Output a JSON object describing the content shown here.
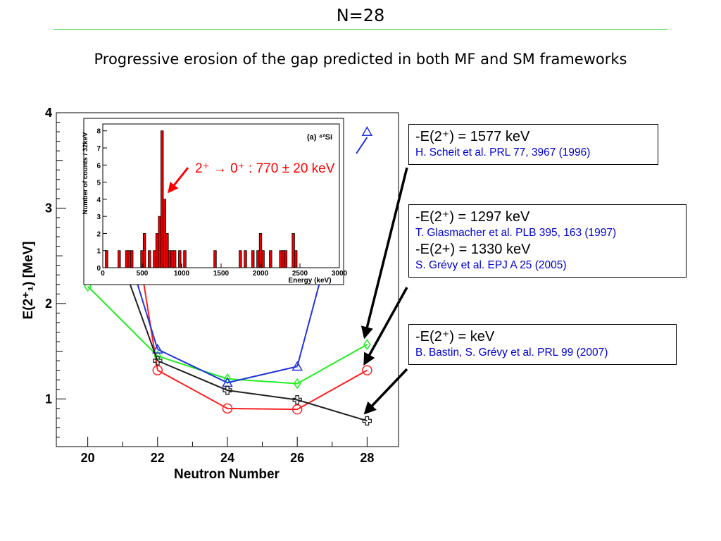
{
  "slide": {
    "title": "N=28",
    "subtitle": "Progressive erosion of the gap predicted in both MF and SM frameworks"
  },
  "references": [
    {
      "value": "-E(2⁺) = 1577 keV",
      "citation": "H. Scheit et al. PRL 77, 3967 (1996)"
    },
    {
      "value": "-E(2⁺) = 1297 keV",
      "citation": "T. Glasmacher et al. PLB 395, 163 (1997)",
      "value2": "-E(2+) = 1330 keV",
      "citation2": "S. Grévy et al. EPJ A 25 (2005)"
    },
    {
      "value": "-E(2⁺) =  keV",
      "citation": "B. Bastin, S. Grévy et al. PRL 99 (2007)"
    }
  ],
  "inset_annotation": "2⁺ → 0⁺ : 770 ± 20 keV",
  "colors": {
    "red": "#ff2020",
    "green": "#22ee22",
    "blue": "#2233dd",
    "black": "#222222",
    "citation": "#0000cc",
    "rule": "#33cc33"
  },
  "chart_data": [
    {
      "type": "line",
      "xlabel": "Neutron Number",
      "ylabel": "E(2⁺₁) [MeV]",
      "x_ticks": [
        "20",
        "22",
        "24",
        "26",
        "28"
      ],
      "y_ticks": [
        "1",
        "2",
        "3",
        "4"
      ],
      "xlim": [
        19.1,
        28.9
      ],
      "ylim": [
        0.5,
        4.0
      ],
      "series": [
        {
          "color": "red",
          "marker": "circle",
          "x": [
            22,
            24,
            26,
            28
          ],
          "y": [
            1.3,
            0.9,
            0.89,
            1.3
          ]
        },
        {
          "color": "green",
          "marker": "diamond",
          "x": [
            20,
            22,
            24,
            26,
            28
          ],
          "y": [
            2.18,
            1.45,
            1.21,
            1.16,
            1.57
          ]
        },
        {
          "color": "blue",
          "marker": "triangle",
          "x": [
            22,
            24,
            26
          ],
          "y": [
            1.52,
            1.17,
            1.34
          ],
          "x_top": 28,
          "y_top": 3.8
        },
        {
          "color": "black",
          "marker": "cross",
          "x": [
            22,
            24,
            26,
            28
          ],
          "y": [
            1.4,
            1.09,
            0.99,
            0.77
          ]
        }
      ]
    },
    {
      "type": "bar",
      "title": "(a) ⁴²Si",
      "xlabel": "Energy (keV)",
      "ylabel": "Number of counts / 32keV",
      "x_ticks": [
        "0",
        "500",
        "1000",
        "1500",
        "2000",
        "2500",
        "3000"
      ],
      "y_ticks": [
        "0",
        "1",
        "2",
        "3",
        "4",
        "5",
        "6",
        "7",
        "8"
      ],
      "xlim": [
        0,
        3000
      ],
      "ylim": [
        0,
        8.4
      ],
      "bin_width": 32,
      "bins": [
        {
          "x": 32,
          "count": 1
        },
        {
          "x": 192,
          "count": 1
        },
        {
          "x": 288,
          "count": 1
        },
        {
          "x": 320,
          "count": 1
        },
        {
          "x": 352,
          "count": 1
        },
        {
          "x": 480,
          "count": 1
        },
        {
          "x": 512,
          "count": 2
        },
        {
          "x": 576,
          "count": 1
        },
        {
          "x": 640,
          "count": 1
        },
        {
          "x": 672,
          "count": 2
        },
        {
          "x": 704,
          "count": 3
        },
        {
          "x": 736,
          "count": 8
        },
        {
          "x": 768,
          "count": 4
        },
        {
          "x": 800,
          "count": 2
        },
        {
          "x": 832,
          "count": 1
        },
        {
          "x": 864,
          "count": 1
        },
        {
          "x": 896,
          "count": 1
        },
        {
          "x": 960,
          "count": 1
        },
        {
          "x": 1024,
          "count": 1
        },
        {
          "x": 1408,
          "count": 1
        },
        {
          "x": 1728,
          "count": 1
        },
        {
          "x": 1792,
          "count": 1
        },
        {
          "x": 1888,
          "count": 1
        },
        {
          "x": 1952,
          "count": 1
        },
        {
          "x": 1984,
          "count": 2
        },
        {
          "x": 2016,
          "count": 1
        },
        {
          "x": 2112,
          "count": 1
        },
        {
          "x": 2240,
          "count": 1
        },
        {
          "x": 2272,
          "count": 1
        },
        {
          "x": 2304,
          "count": 1
        },
        {
          "x": 2400,
          "count": 2
        },
        {
          "x": 2432,
          "count": 1
        }
      ]
    }
  ]
}
